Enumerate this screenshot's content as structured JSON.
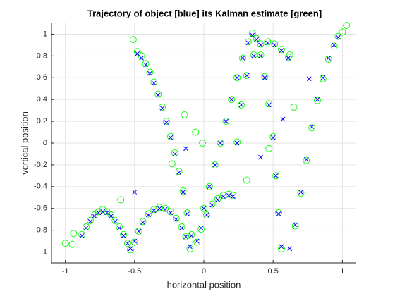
{
  "chart_data": {
    "type": "scatter",
    "title": "Trajectory of object [blue] its Kalman estimate [green]",
    "x_label": "horizontal position",
    "y_label": "vertical position",
    "xlim": [
      -1.1,
      1.1
    ],
    "ylim": [
      -1.1,
      1.1
    ],
    "xticks": [
      -1,
      -0.5,
      0,
      0.5,
      1
    ],
    "yticks": [
      -1,
      -0.8,
      -0.6,
      -0.4,
      -0.2,
      0,
      0.2,
      0.4,
      0.6,
      0.8,
      1
    ],
    "grid": true,
    "series": [
      {
        "color": "#00ff00",
        "marker": "o",
        "x": [
          -1.0,
          -0.95,
          -0.94,
          -0.88,
          -0.85,
          -0.82,
          -0.79,
          -0.76,
          -0.73,
          -0.7,
          -0.67,
          -0.64,
          -0.61,
          -0.6,
          -0.58,
          -0.55,
          -0.53,
          -0.5,
          -0.47,
          -0.44,
          -0.4,
          -0.36,
          -0.32,
          -0.28,
          -0.24,
          -0.2,
          -0.16,
          -0.13,
          -0.1,
          -0.51,
          -0.48,
          -0.45,
          -0.42,
          -0.39,
          -0.36,
          -0.33,
          -0.3,
          -0.27,
          -0.24,
          -0.23,
          -0.21,
          -0.18,
          -0.15,
          -0.14,
          -0.12,
          -0.09,
          -0.06,
          -0.05,
          -0.02,
          -0.01,
          0.02,
          0.06,
          0.1,
          0.14,
          0.18,
          0.21,
          0.0,
          0.04,
          0.08,
          0.12,
          0.16,
          0.2,
          0.24,
          0.28,
          0.32,
          0.35,
          0.38,
          0.41,
          0.44,
          0.47,
          0.5,
          0.52,
          0.54,
          0.56,
          0.24,
          0.27,
          0.31,
          0.31,
          0.36,
          0.41,
          0.46,
          0.47,
          0.51,
          0.56,
          0.61,
          0.62,
          0.65,
          0.66,
          0.7,
          0.74,
          0.78,
          0.82,
          0.86,
          0.9,
          0.94,
          0.97,
          1.0,
          1.03
        ],
        "values": [
          -0.92,
          -0.93,
          -0.83,
          -0.84,
          -0.77,
          -0.71,
          -0.66,
          -0.63,
          -0.61,
          -0.63,
          -0.66,
          -0.71,
          -0.77,
          -0.52,
          -0.84,
          -0.92,
          -0.98,
          -0.91,
          -0.81,
          -0.72,
          -0.65,
          -0.61,
          -0.59,
          -0.6,
          -0.63,
          -0.69,
          -0.77,
          -0.86,
          -0.97,
          0.95,
          0.84,
          0.8,
          0.73,
          0.65,
          0.56,
          0.45,
          0.33,
          0.2,
          0.06,
          -0.19,
          -0.09,
          -0.26,
          -0.44,
          0.26,
          -0.64,
          -0.84,
          0.1,
          -0.91,
          -0.79,
          0.0,
          -0.66,
          -0.56,
          -0.51,
          -0.48,
          -0.47,
          -0.48,
          -0.6,
          -0.4,
          -0.2,
          0.0,
          0.2,
          0.4,
          0.6,
          0.78,
          0.93,
          1.01,
          0.96,
          0.81,
          0.61,
          0.36,
          0.06,
          -0.3,
          -0.64,
          -0.97,
          0.01,
          0.35,
          0.62,
          -0.34,
          0.81,
          0.91,
          0.93,
          -0.05,
          0.91,
          0.86,
          0.79,
          0.81,
          0.33,
          -0.76,
          -0.46,
          -0.16,
          0.14,
          0.39,
          0.59,
          0.77,
          0.89,
          0.98,
          1.02,
          1.08
        ]
      },
      {
        "color": "#0000ff",
        "marker": "x",
        "x": [
          -0.88,
          -0.85,
          -0.82,
          -0.79,
          -0.76,
          -0.73,
          -0.7,
          -0.67,
          -0.64,
          -0.61,
          -0.58,
          -0.55,
          -0.53,
          -0.5,
          -0.47,
          -0.44,
          -0.4,
          -0.36,
          -0.32,
          -0.28,
          -0.24,
          -0.2,
          -0.16,
          -0.13,
          -0.1,
          -0.48,
          -0.45,
          -0.42,
          -0.39,
          -0.36,
          -0.33,
          -0.3,
          -0.27,
          -0.24,
          -0.21,
          -0.18,
          -0.15,
          -0.12,
          -0.09,
          -0.05,
          -0.02,
          0.02,
          0.06,
          0.1,
          0.14,
          0.18,
          0.21,
          0.0,
          0.04,
          0.08,
          0.12,
          0.16,
          0.2,
          0.24,
          0.28,
          0.32,
          0.35,
          0.38,
          0.41,
          0.44,
          0.47,
          0.5,
          0.52,
          0.54,
          0.56,
          0.24,
          0.27,
          0.31,
          0.36,
          0.41,
          0.46,
          0.51,
          0.56,
          0.61,
          0.62,
          0.66,
          0.7,
          0.74,
          0.78,
          0.82,
          0.86,
          0.9,
          0.94,
          0.97,
          -0.5,
          -0.13,
          0.41,
          0.57,
          0.76
        ],
        "values": [
          -0.85,
          -0.78,
          -0.72,
          -0.67,
          -0.64,
          -0.63,
          -0.64,
          -0.67,
          -0.72,
          -0.78,
          -0.85,
          -0.92,
          -0.97,
          -0.9,
          -0.81,
          -0.73,
          -0.66,
          -0.62,
          -0.6,
          -0.61,
          -0.64,
          -0.7,
          -0.78,
          -0.86,
          -0.95,
          0.82,
          0.78,
          0.72,
          0.64,
          0.55,
          0.44,
          0.32,
          0.19,
          0.05,
          -0.1,
          -0.27,
          -0.45,
          -0.65,
          -0.85,
          -0.9,
          -0.78,
          -0.66,
          -0.57,
          -0.52,
          -0.49,
          -0.48,
          -0.49,
          -0.6,
          -0.4,
          -0.2,
          0.0,
          0.2,
          0.4,
          0.6,
          0.78,
          0.92,
          0.99,
          0.95,
          0.8,
          0.6,
          0.35,
          0.05,
          -0.3,
          -0.65,
          -0.95,
          0.0,
          0.35,
          0.62,
          0.8,
          0.9,
          0.92,
          0.9,
          0.85,
          0.78,
          -0.97,
          -0.75,
          -0.45,
          -0.15,
          0.15,
          0.4,
          0.6,
          0.78,
          0.9,
          0.97,
          -0.45,
          -0.05,
          -0.13,
          0.22,
          0.59
        ]
      }
    ]
  }
}
